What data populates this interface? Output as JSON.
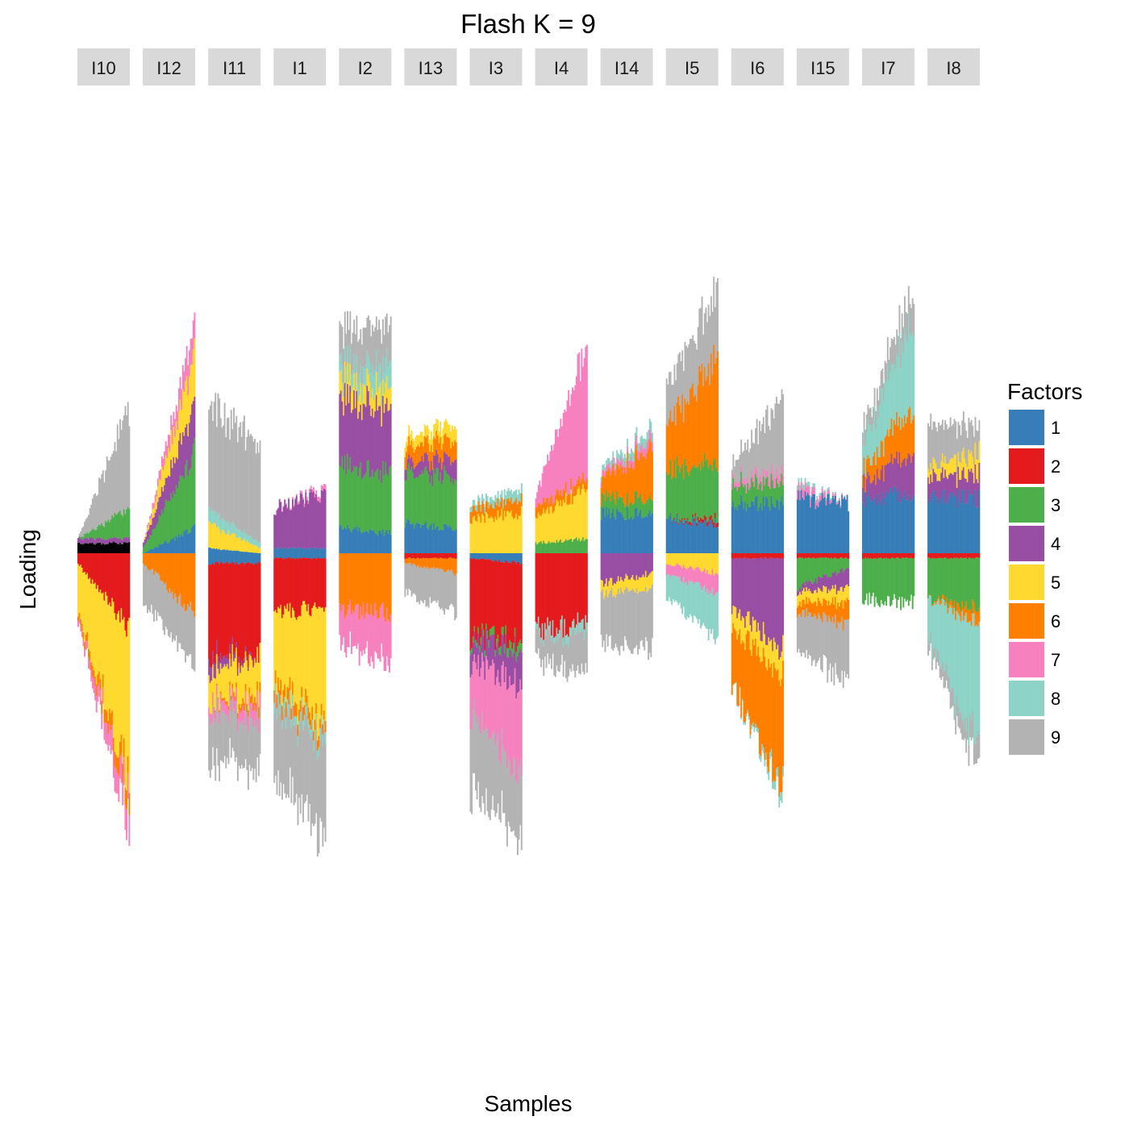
{
  "chart_data": {
    "type": "bar",
    "subtype": "faceted-stacked-signed-bar",
    "title": "Flash K = 9",
    "xlabel": "Samples",
    "ylabel": "Loading",
    "ylim": [
      -1.0,
      0.9
    ],
    "grid": false,
    "legend": {
      "title": "Factors",
      "placement": "right",
      "entries": [
        {
          "label": "1",
          "color": "#377eb8"
        },
        {
          "label": "2",
          "color": "#e41a1c"
        },
        {
          "label": "3",
          "color": "#4daf4a"
        },
        {
          "label": "4",
          "color": "#984ea3"
        },
        {
          "label": "5",
          "color": "#ffd92f"
        },
        {
          "label": "6",
          "color": "#ff7f00"
        },
        {
          "label": "7",
          "color": "#f781bf"
        },
        {
          "label": "8",
          "color": "#8dd3c7"
        },
        {
          "label": "9",
          "color": "#b3b3b3"
        }
      ]
    },
    "facets": [
      {
        "label": "I10",
        "pos": [
          [
            0,
            0.02,
            0.02
          ],
          [
            4,
            0.01,
            0.01
          ],
          [
            3,
            0.0,
            0.06
          ],
          [
            9,
            0.0,
            0.2
          ]
        ],
        "neg": [
          [
            2,
            -0.02,
            -0.15
          ],
          [
            5,
            -0.1,
            -0.3
          ],
          [
            6,
            -0.01,
            -0.04
          ],
          [
            7,
            -0.01,
            -0.06
          ]
        ]
      },
      {
        "label": "I12",
        "pos": [
          [
            1,
            0.0,
            0.05
          ],
          [
            3,
            0.01,
            0.15
          ],
          [
            4,
            0.01,
            0.1
          ],
          [
            5,
            0.0,
            0.1
          ],
          [
            7,
            0.0,
            0.06
          ]
        ],
        "neg": [
          [
            6,
            -0.02,
            -0.12
          ],
          [
            9,
            -0.08,
            -0.1
          ]
        ]
      },
      {
        "label": "I11",
        "pos": [
          [
            1,
            0.01,
            0.0
          ],
          [
            5,
            0.05,
            0.01
          ],
          [
            8,
            0.03,
            0.01
          ],
          [
            9,
            0.21,
            0.19
          ]
        ],
        "neg": [
          [
            1,
            -0.02,
            -0.02
          ],
          [
            2,
            -0.18,
            -0.18
          ],
          [
            4,
            -0.03,
            -0.0
          ],
          [
            5,
            -0.06,
            -0.08
          ],
          [
            6,
            -0.0,
            -0.02
          ],
          [
            7,
            -0.02,
            -0.03
          ],
          [
            9,
            -0.1,
            -0.1
          ]
        ]
      },
      {
        "label": "I1",
        "pos": [
          [
            1,
            0.01,
            0.01
          ],
          [
            4,
            0.08,
            0.11
          ],
          [
            7,
            0.0,
            0.01
          ]
        ],
        "neg": [
          [
            1,
            -0.01,
            -0.01
          ],
          [
            2,
            -0.11,
            -0.1
          ],
          [
            5,
            -0.14,
            -0.24
          ],
          [
            6,
            -0.03,
            -0.02
          ],
          [
            8,
            -0.02,
            -0.02
          ],
          [
            9,
            -0.14,
            -0.18
          ]
        ]
      },
      {
        "label": "I2",
        "pos": [
          [
            1,
            0.05,
            0.04
          ],
          [
            3,
            0.13,
            0.12
          ],
          [
            4,
            0.13,
            0.13
          ],
          [
            5,
            0.04,
            0.04
          ],
          [
            8,
            0.03,
            0.05
          ],
          [
            9,
            0.07,
            0.08
          ]
        ],
        "neg": [
          [
            6,
            -0.11,
            -0.12
          ],
          [
            7,
            -0.07,
            -0.1
          ]
        ]
      },
      {
        "label": "I13",
        "pos": [
          [
            1,
            0.06,
            0.05
          ],
          [
            3,
            0.1,
            0.1
          ],
          [
            4,
            0.02,
            0.04
          ],
          [
            6,
            0.03,
            0.04
          ],
          [
            5,
            0.02,
            0.03
          ]
        ],
        "neg": [
          [
            2,
            -0.01,
            -0.01
          ],
          [
            6,
            -0.01,
            -0.03
          ],
          [
            9,
            -0.06,
            -0.08
          ]
        ]
      },
      {
        "label": "I3",
        "pos": [
          [
            5,
            0.07,
            0.08
          ],
          [
            6,
            0.02,
            0.03
          ],
          [
            8,
            0.01,
            0.02
          ]
        ],
        "neg": [
          [
            1,
            -0.01,
            -0.02
          ],
          [
            2,
            -0.16,
            -0.15
          ],
          [
            3,
            -0.01,
            -0.02
          ],
          [
            4,
            -0.04,
            -0.07
          ],
          [
            7,
            -0.1,
            -0.17
          ],
          [
            9,
            -0.15,
            -0.13
          ]
        ]
      },
      {
        "label": "I4",
        "pos": [
          [
            3,
            0.02,
            0.03
          ],
          [
            5,
            0.05,
            0.1
          ],
          [
            6,
            0.02,
            0.02
          ],
          [
            7,
            0.02,
            0.27
          ]
        ],
        "neg": [
          [
            2,
            -0.15,
            -0.14
          ],
          [
            8,
            -0.01,
            -0.02
          ],
          [
            9,
            -0.05,
            -0.08
          ]
        ]
      },
      {
        "label": "I14",
        "pos": [
          [
            1,
            0.08,
            0.08
          ],
          [
            3,
            0.03,
            0.03
          ],
          [
            6,
            0.04,
            0.1
          ],
          [
            7,
            0.01,
            0.02
          ],
          [
            8,
            0.01,
            0.02
          ]
        ],
        "neg": [
          [
            4,
            -0.06,
            -0.04
          ],
          [
            5,
            -0.02,
            -0.03
          ],
          [
            9,
            -0.1,
            -0.12
          ]
        ]
      },
      {
        "label": "I5",
        "pos": [
          [
            1,
            0.07,
            0.06
          ],
          [
            2,
            0.0,
            0.01
          ],
          [
            3,
            0.1,
            0.11
          ],
          [
            6,
            0.09,
            0.21
          ],
          [
            9,
            0.08,
            0.14
          ]
        ],
        "neg": [
          [
            5,
            -0.02,
            -0.04
          ],
          [
            7,
            -0.02,
            -0.04
          ],
          [
            8,
            -0.05,
            -0.09
          ]
        ]
      },
      {
        "label": "I6",
        "pos": [
          [
            1,
            0.1,
            0.1
          ],
          [
            3,
            0.04,
            0.04
          ],
          [
            7,
            0.01,
            0.02
          ],
          [
            9,
            0.03,
            0.15
          ]
        ],
        "neg": [
          [
            2,
            -0.01,
            -0.01
          ],
          [
            4,
            -0.1,
            -0.18
          ],
          [
            5,
            -0.04,
            -0.05
          ],
          [
            6,
            -0.11,
            -0.23
          ],
          [
            8,
            -0.0,
            -0.02
          ]
        ]
      },
      {
        "label": "I15",
        "pos": [
          [
            1,
            0.11,
            0.1
          ],
          [
            7,
            0.02,
            0.0
          ],
          [
            8,
            0.01,
            0.0
          ]
        ],
        "neg": [
          [
            2,
            -0.01,
            -0.01
          ],
          [
            3,
            -0.06,
            -0.02
          ],
          [
            4,
            -0.01,
            -0.04
          ],
          [
            5,
            -0.02,
            -0.03
          ],
          [
            6,
            -0.02,
            -0.04
          ],
          [
            9,
            -0.08,
            -0.12
          ]
        ]
      },
      {
        "label": "I7",
        "pos": [
          [
            1,
            0.11,
            0.12
          ],
          [
            4,
            0.03,
            0.09
          ],
          [
            6,
            0.03,
            0.09
          ],
          [
            8,
            0.05,
            0.18
          ],
          [
            9,
            0.03,
            0.06
          ]
        ],
        "neg": [
          [
            2,
            -0.01,
            -0.01
          ],
          [
            3,
            -0.08,
            -0.09
          ]
        ]
      },
      {
        "label": "I8",
        "pos": [
          [
            1,
            0.11,
            0.11
          ],
          [
            4,
            0.04,
            0.05
          ],
          [
            5,
            0.02,
            0.04
          ],
          [
            9,
            0.09,
            0.05
          ]
        ],
        "neg": [
          [
            2,
            -0.01,
            -0.01
          ],
          [
            3,
            -0.08,
            -0.1
          ],
          [
            6,
            -0.0,
            -0.03
          ],
          [
            8,
            -0.08,
            -0.25
          ],
          [
            9,
            -0.02,
            -0.05
          ]
        ]
      }
    ]
  }
}
